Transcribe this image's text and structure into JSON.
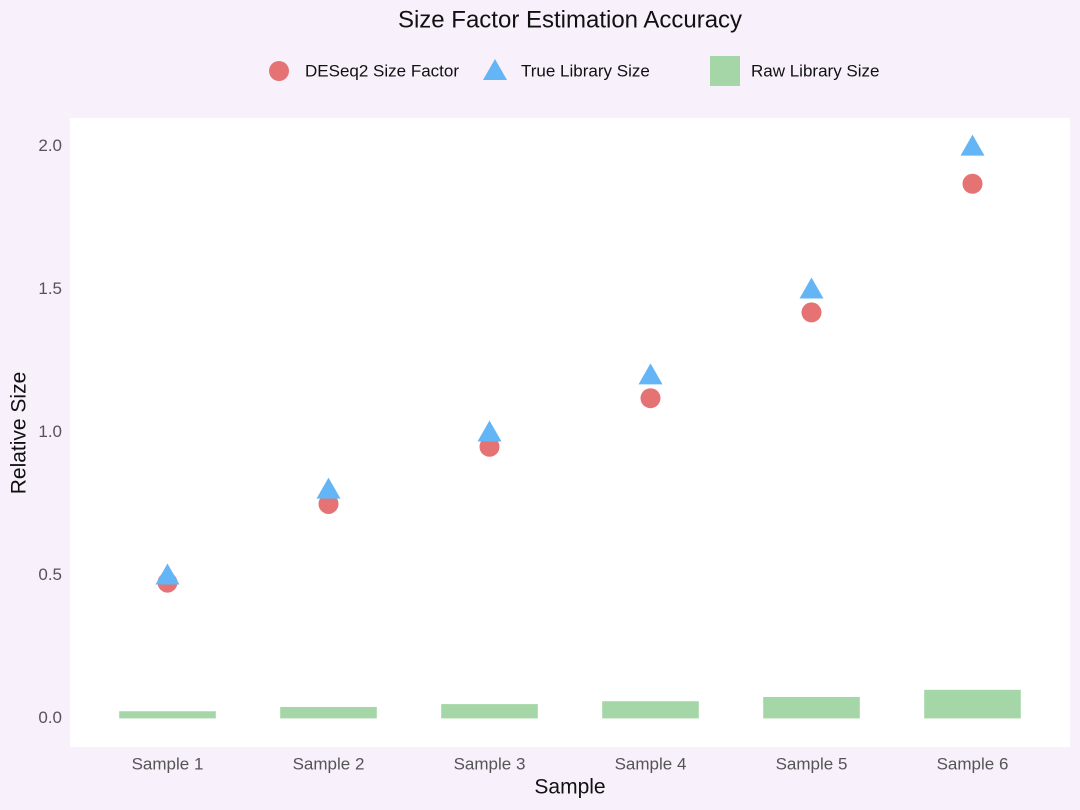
{
  "chart_data": {
    "type": "combo",
    "title": "Size Factor Estimation Accuracy",
    "x_label": "Sample",
    "y_label": "Relative Size",
    "categories": [
      "Sample 1",
      "Sample 2",
      "Sample 3",
      "Sample 4",
      "Sample 5",
      "Sample 6"
    ],
    "series": [
      {
        "name": "DESeq2 Size Factor",
        "type": "scatter",
        "marker": "circle",
        "color": "#e57373",
        "values": [
          0.475,
          0.75,
          0.95,
          1.12,
          1.42,
          1.87
        ]
      },
      {
        "name": "True Library Size",
        "type": "scatter",
        "marker": "triangle",
        "color": "#64b5f6",
        "values": [
          0.5,
          0.8,
          1.0,
          1.2,
          1.5,
          2.0
        ]
      },
      {
        "name": "Raw Library Size",
        "type": "bar",
        "color": "#a5d6a7",
        "values": [
          0.025,
          0.04,
          0.05,
          0.06,
          0.075,
          0.1
        ]
      }
    ],
    "ylim": [
      -0.1,
      2.1
    ],
    "yticks": [
      {
        "value": 0,
        "label": "0.0"
      },
      0.5,
      {
        "value": 1,
        "label": "1.0"
      },
      1.5,
      {
        "value": 2,
        "label": "2.0"
      }
    ],
    "grid": false,
    "legend": "top"
  }
}
